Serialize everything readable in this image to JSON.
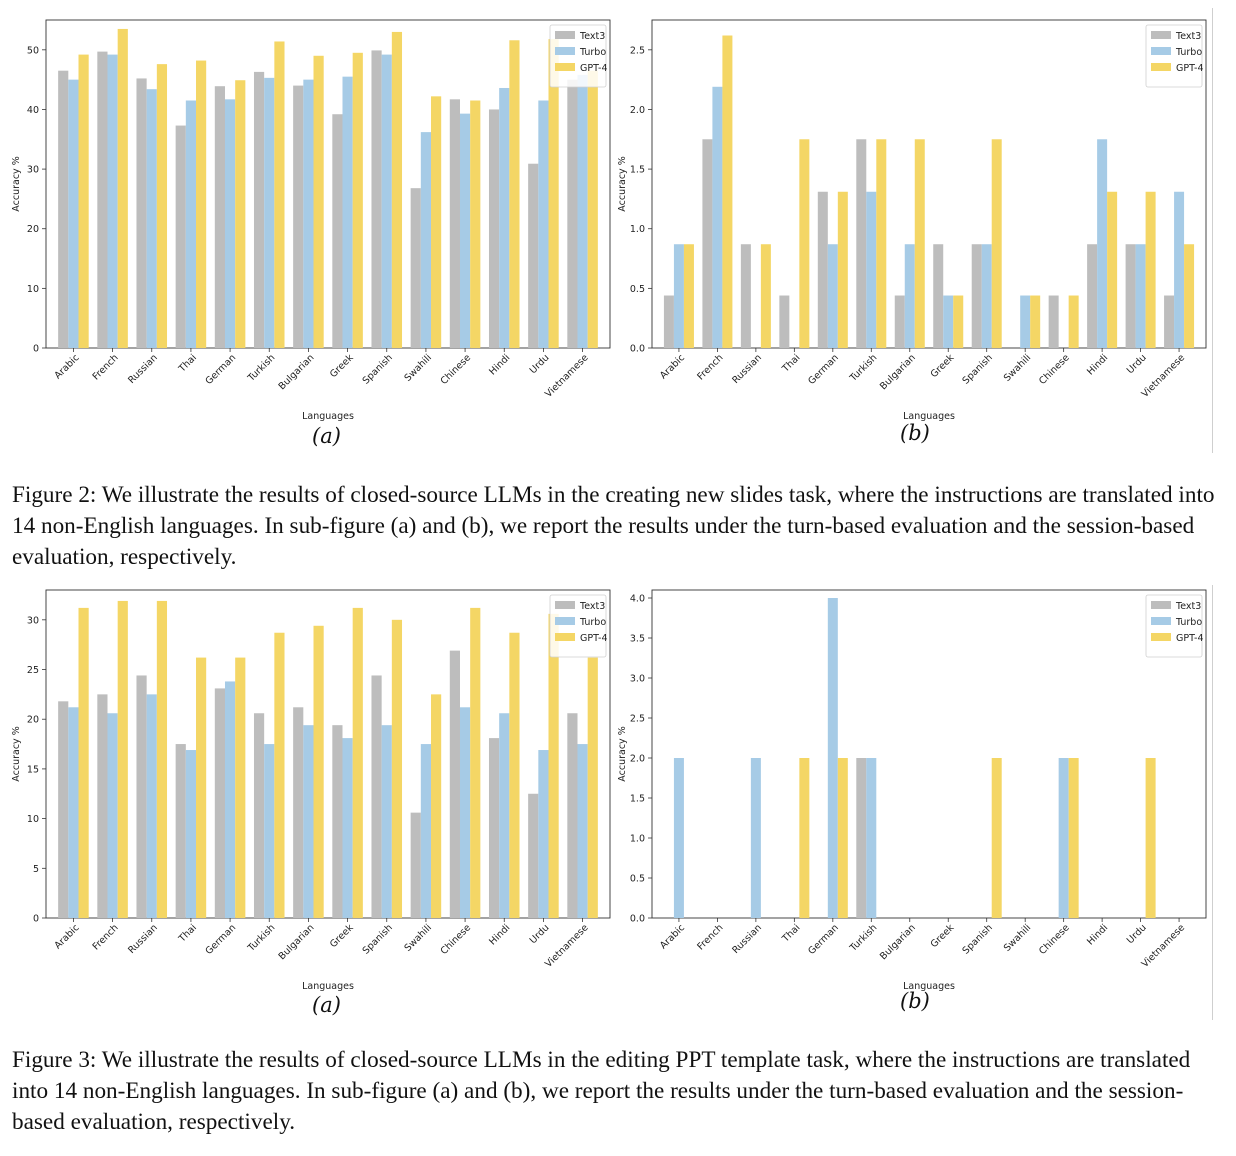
{
  "figures": [
    {
      "caption": "Figure 2: We illustrate the results of closed-source LLMs in the creating new slides task, where the instructions are translated into 14 non-English languages. In sub-figure (a) and (b), we report the results under the turn-based evaluation and the session-based evaluation, respectively.",
      "subcaptions": [
        "(a)",
        "(b)"
      ]
    },
    {
      "caption": "Figure 3: We illustrate the results of closed-source LLMs in the editing PPT template task, where the instructions are translated into 14 non-English languages. In sub-figure (a) and (b), we report the results under the turn-based evaluation and the session-based evaluation, respectively.",
      "subcaptions": [
        "(a)",
        "(b)"
      ]
    }
  ],
  "chart_data": [
    {
      "id": "fig2a",
      "type": "bar",
      "xlabel": "Languages",
      "ylabel": "Accuracy %",
      "ylim": [
        0,
        55
      ],
      "yticks": [
        "0",
        "10",
        "20",
        "30",
        "40",
        "50"
      ],
      "ytick_values": [
        0,
        10,
        20,
        30,
        40,
        50
      ],
      "legend_position": "top-right",
      "categories": [
        "Arabic",
        "French",
        "Russian",
        "Thai",
        "German",
        "Turkish",
        "Bulgarian",
        "Greek",
        "Spanish",
        "Swahili",
        "Chinese",
        "Hindi",
        "Urdu",
        "Vietnamese"
      ],
      "series": [
        {
          "name": "Text3",
          "color": "#bdbdbd",
          "values": [
            46.5,
            49.7,
            45.2,
            37.3,
            43.9,
            46.3,
            44.0,
            39.2,
            49.9,
            26.8,
            41.7,
            40.0,
            30.9,
            45.0
          ]
        },
        {
          "name": "Turbo",
          "color": "#a6cbe6",
          "values": [
            45.0,
            49.2,
            43.4,
            41.5,
            41.7,
            45.3,
            45.0,
            45.5,
            49.2,
            36.2,
            39.3,
            43.6,
            41.5,
            45.8
          ]
        },
        {
          "name": "GPT-4",
          "color": "#f4d665",
          "values": [
            49.2,
            53.5,
            47.6,
            48.2,
            44.9,
            51.4,
            49.0,
            49.5,
            53.0,
            42.2,
            41.5,
            51.6,
            51.8,
            46.5
          ]
        }
      ]
    },
    {
      "id": "fig2b",
      "type": "bar",
      "xlabel": "Languages",
      "ylabel": "Accuracy %",
      "ylim": [
        0,
        2.75
      ],
      "yticks": [
        "0.0",
        "0.5",
        "1.0",
        "1.5",
        "2.0",
        "2.5"
      ],
      "ytick_values": [
        0,
        0.5,
        1.0,
        1.5,
        2.0,
        2.5
      ],
      "legend_position": "top-right",
      "categories": [
        "Arabic",
        "French",
        "Russian",
        "Thai",
        "German",
        "Turkish",
        "Bulgarian",
        "Greek",
        "Spanish",
        "Swahili",
        "Chinese",
        "Hindi",
        "Urdu",
        "Vietnamese"
      ],
      "series": [
        {
          "name": "Text3",
          "color": "#bdbdbd",
          "values": [
            0.44,
            1.75,
            0.87,
            0.44,
            1.31,
            1.75,
            0.44,
            0.87,
            0.87,
            0,
            0.44,
            0.87,
            0.87,
            0.44
          ]
        },
        {
          "name": "Turbo",
          "color": "#a6cbe6",
          "values": [
            0.87,
            2.19,
            0,
            0,
            0.87,
            1.31,
            0.87,
            0.44,
            0.87,
            0.44,
            0,
            1.75,
            0.87,
            1.31
          ]
        },
        {
          "name": "GPT-4",
          "color": "#f4d665",
          "values": [
            0.87,
            2.62,
            0.87,
            1.75,
            1.31,
            1.75,
            1.75,
            0.44,
            1.75,
            0.44,
            0.44,
            1.31,
            1.31,
            0.87
          ]
        }
      ]
    },
    {
      "id": "fig3a",
      "type": "bar",
      "xlabel": "Languages",
      "ylabel": "Accuracy %",
      "ylim": [
        0,
        33
      ],
      "yticks": [
        "0",
        "5",
        "10",
        "15",
        "20",
        "25",
        "30"
      ],
      "ytick_values": [
        0,
        5,
        10,
        15,
        20,
        25,
        30
      ],
      "legend_position": "top-right",
      "categories": [
        "Arabic",
        "French",
        "Russian",
        "Thai",
        "German",
        "Turkish",
        "Bulgarian",
        "Greek",
        "Spanish",
        "Swahili",
        "Chinese",
        "Hindi",
        "Urdu",
        "Vietnamese"
      ],
      "series": [
        {
          "name": "Text3",
          "color": "#bdbdbd",
          "values": [
            21.8,
            22.5,
            24.4,
            17.5,
            23.1,
            20.6,
            21.2,
            19.4,
            24.4,
            10.6,
            26.9,
            18.1,
            12.5,
            20.6
          ]
        },
        {
          "name": "Turbo",
          "color": "#a6cbe6",
          "values": [
            21.2,
            20.6,
            22.5,
            16.9,
            23.8,
            17.5,
            19.4,
            18.1,
            19.4,
            17.5,
            21.2,
            20.6,
            16.9,
            17.5
          ]
        },
        {
          "name": "GPT-4",
          "color": "#f4d665",
          "values": [
            31.2,
            31.9,
            31.9,
            26.2,
            26.2,
            28.7,
            29.4,
            31.2,
            30.0,
            22.5,
            31.2,
            28.7,
            30.6,
            26.2
          ]
        }
      ]
    },
    {
      "id": "fig3b",
      "type": "bar",
      "xlabel": "Languages",
      "ylabel": "Accuracy %",
      "ylim": [
        0,
        4.1
      ],
      "yticks": [
        "0.0",
        "0.5",
        "1.0",
        "1.5",
        "2.0",
        "2.5",
        "3.0",
        "3.5",
        "4.0"
      ],
      "ytick_values": [
        0,
        0.5,
        1.0,
        1.5,
        2.0,
        2.5,
        3.0,
        3.5,
        4.0
      ],
      "legend_position": "top-right",
      "categories": [
        "Arabic",
        "French",
        "Russian",
        "Thai",
        "German",
        "Turkish",
        "Bulgarian",
        "Greek",
        "Spanish",
        "Swahili",
        "Chinese",
        "Hindi",
        "Urdu",
        "Vietnamese"
      ],
      "series": [
        {
          "name": "Text3",
          "color": "#bdbdbd",
          "values": [
            0,
            0,
            0,
            0,
            0,
            2.0,
            0,
            0,
            0,
            0,
            0,
            0,
            0,
            0
          ]
        },
        {
          "name": "Turbo",
          "color": "#a6cbe6",
          "values": [
            2.0,
            0,
            2.0,
            0,
            4.0,
            2.0,
            0,
            0,
            0,
            0,
            2.0,
            0,
            0,
            0
          ]
        },
        {
          "name": "GPT-4",
          "color": "#f4d665",
          "values": [
            0,
            0,
            0,
            2.0,
            2.0,
            0,
            0,
            0,
            2.0,
            0,
            2.0,
            0,
            2.0,
            0
          ]
        }
      ]
    }
  ]
}
